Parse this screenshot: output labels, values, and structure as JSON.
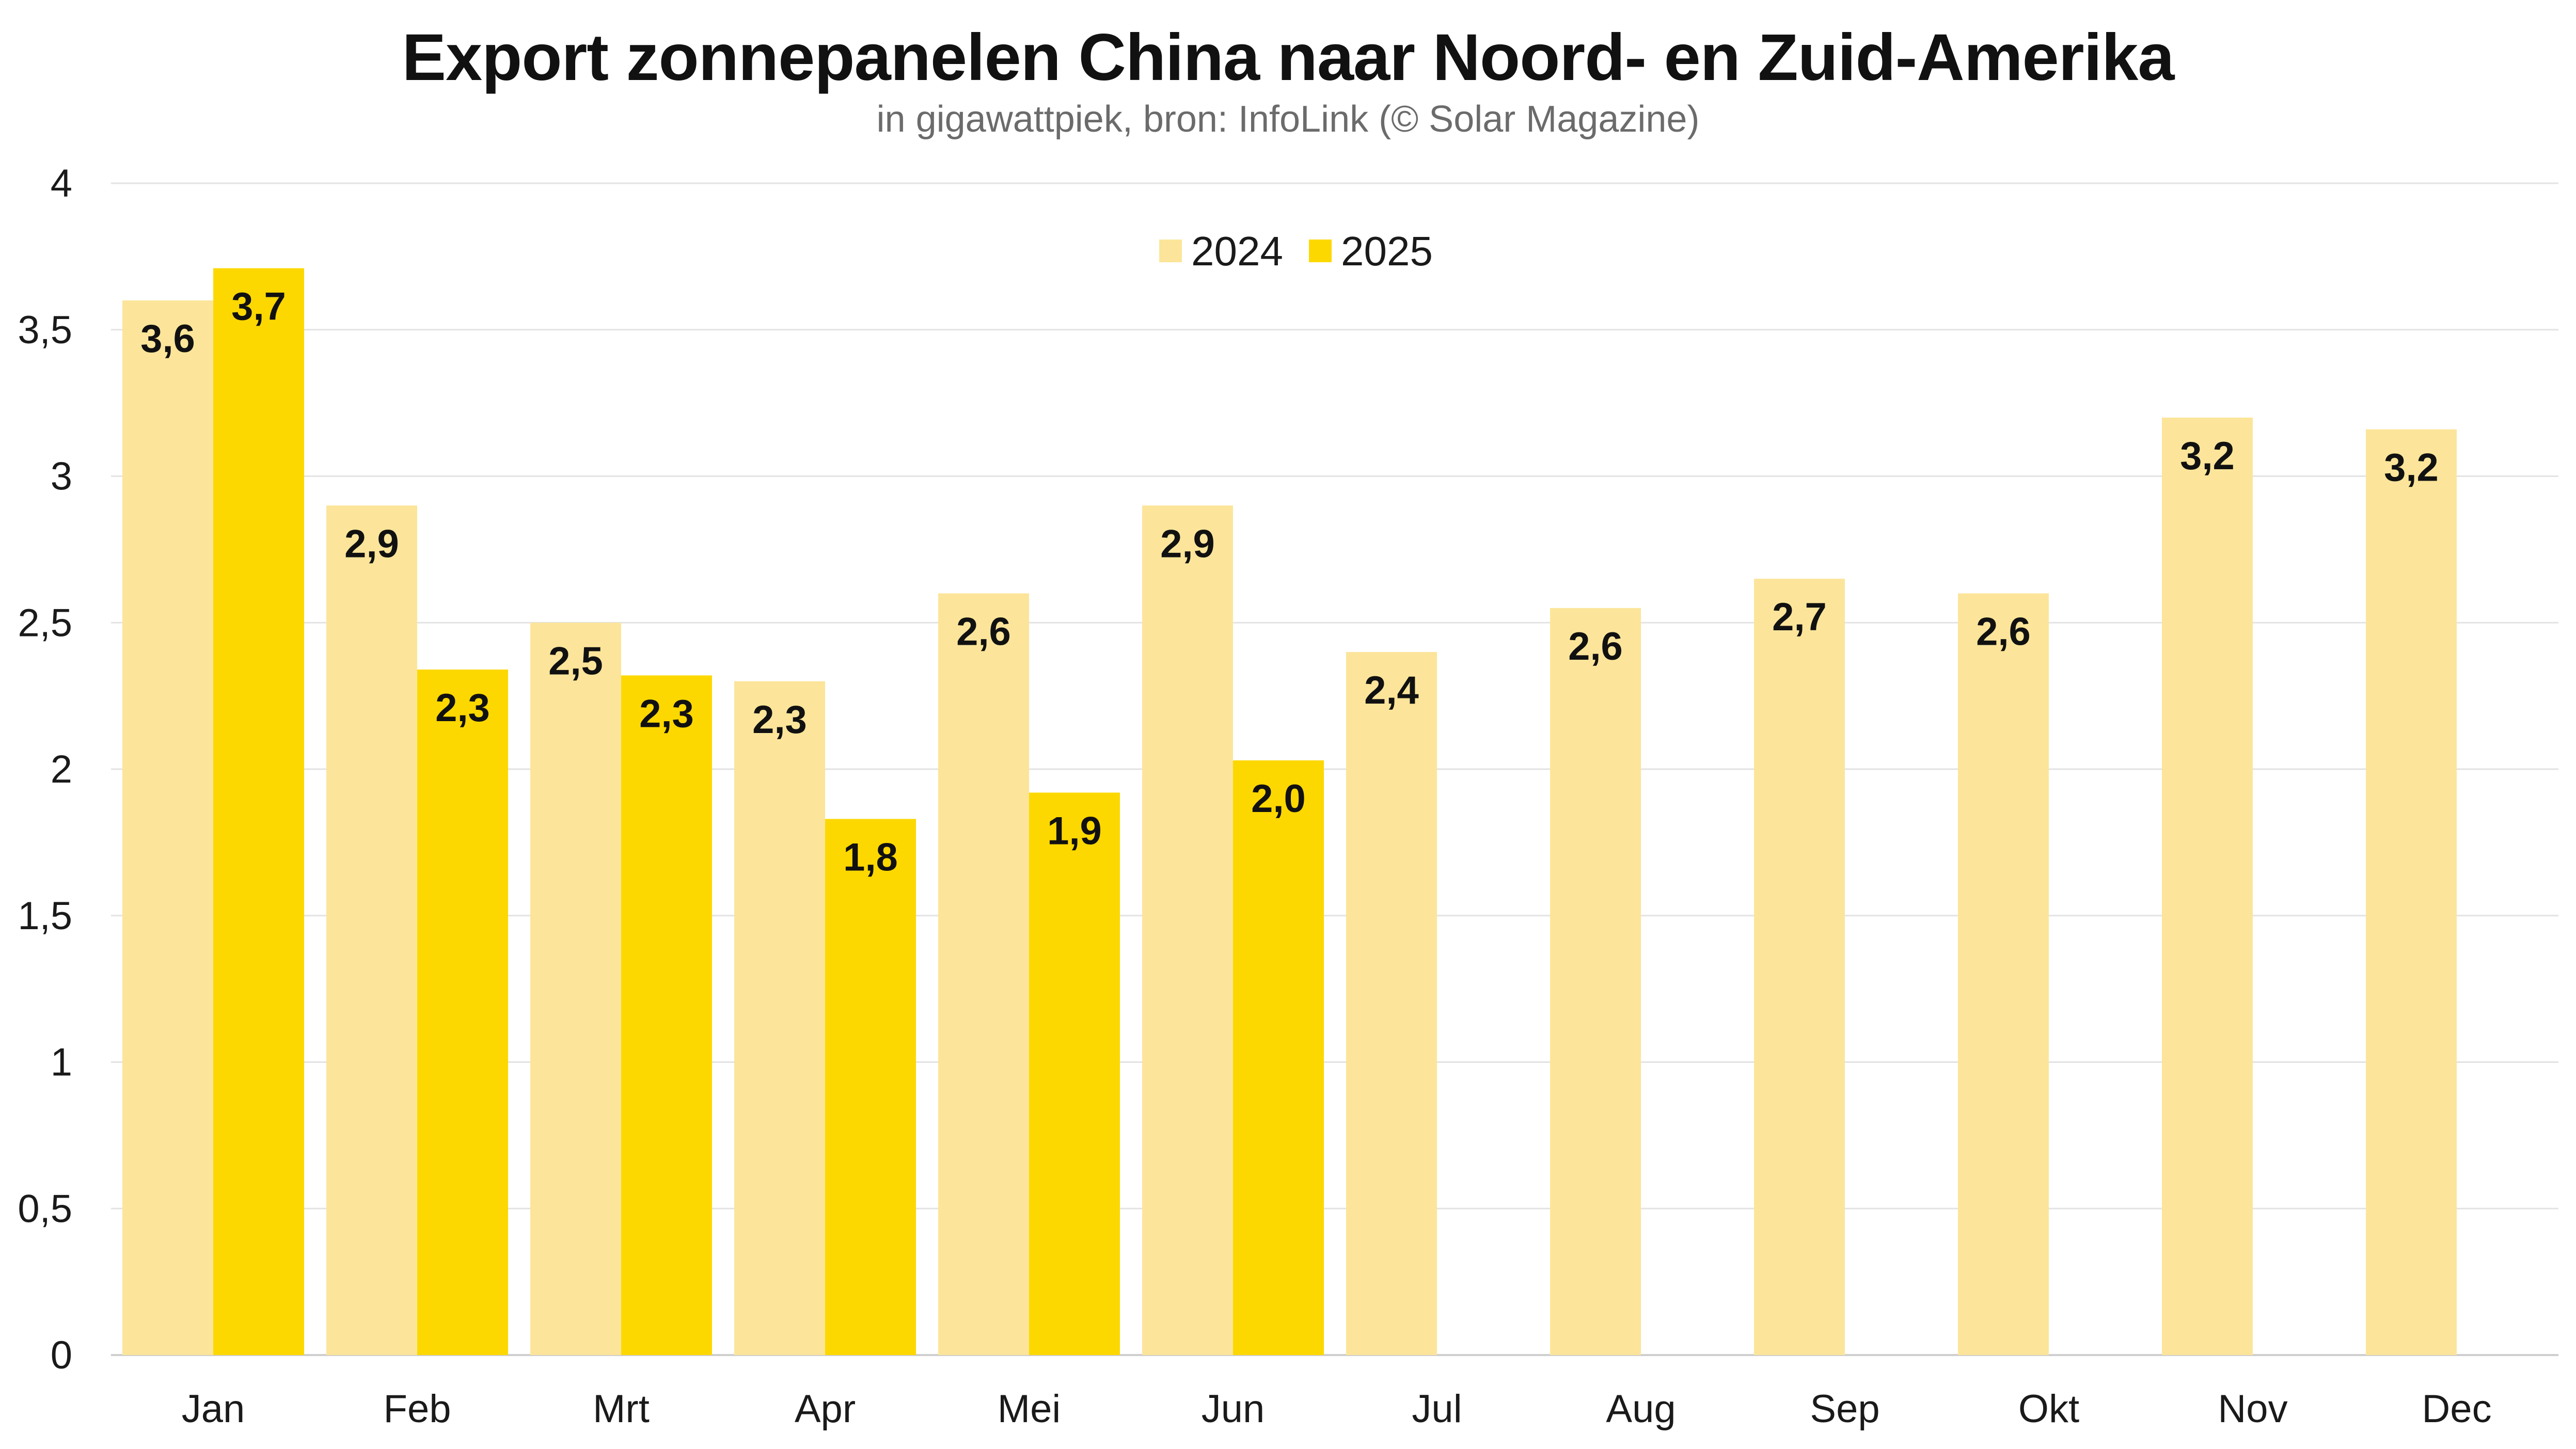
{
  "chart_data": {
    "type": "bar",
    "title": "Export zonnepanelen China naar Noord- en Zuid-Amerika",
    "subtitle": "in gigawattpiek, bron: InfoLink (© Solar Magazine)",
    "xlabel": "",
    "ylabel": "",
    "categories": [
      "Jan",
      "Feb",
      "Mrt",
      "Apr",
      "Mei",
      "Jun",
      "Jul",
      "Aug",
      "Sep",
      "Okt",
      "Nov",
      "Dec"
    ],
    "series": [
      {
        "name": "2024",
        "color": "#FCE59A",
        "values": [
          3.6,
          2.9,
          2.5,
          2.3,
          2.6,
          2.9,
          2.4,
          2.55,
          2.65,
          2.6,
          3.2,
          3.16
        ],
        "labels": [
          "3,6",
          "2,9",
          "2,5",
          "2,3",
          "2,6",
          "2,9",
          "2,4",
          "2,6",
          "2,7",
          "2,6",
          "3,2",
          "3,2"
        ]
      },
      {
        "name": "2025",
        "color": "#FDD800",
        "values": [
          3.71,
          2.34,
          2.32,
          1.83,
          1.92,
          2.03,
          null,
          null,
          null,
          null,
          null,
          null
        ],
        "labels": [
          "3,7",
          "2,3",
          "2,3",
          "1,8",
          "1,9",
          "2,0",
          "",
          "",
          "",
          "",
          "",
          ""
        ]
      }
    ],
    "ylim": [
      0,
      4
    ],
    "yticks": [
      0,
      0.5,
      1,
      1.5,
      2,
      2.5,
      3,
      3.5,
      4
    ],
    "ytick_labels": [
      "0",
      "0,5",
      "1",
      "1,5",
      "2",
      "2,5",
      "3",
      "3,5",
      "4"
    ],
    "grid": true,
    "legend": "top-center"
  }
}
